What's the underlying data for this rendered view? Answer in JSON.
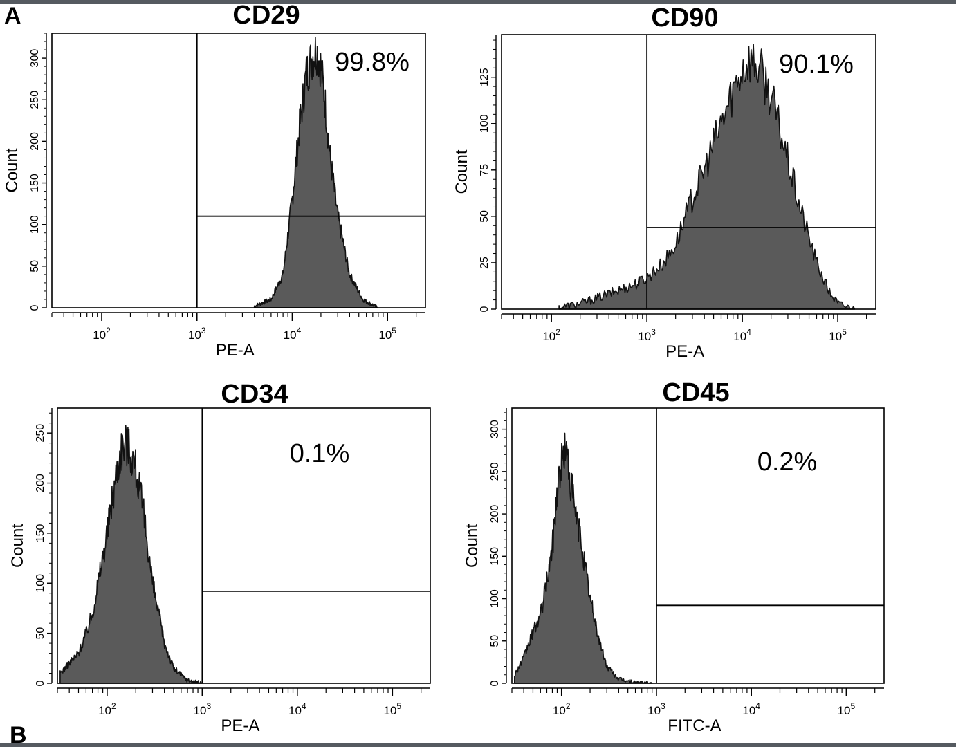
{
  "figure": {
    "panel_label_top": "A",
    "panel_label_bottom": "B"
  },
  "chart_data": [
    {
      "type": "area",
      "title": "CD29",
      "xlabel": "PE-A",
      "ylabel": "Count",
      "xscale": "log",
      "xlim": [
        30,
        250000
      ],
      "ylim": [
        0,
        330
      ],
      "yticks": [
        0,
        50,
        100,
        150,
        200,
        250,
        300
      ],
      "xtick_labels": [
        "10^2",
        "10^3",
        "10^4",
        "10^5"
      ],
      "xticks": [
        100,
        1000,
        10000,
        100000
      ],
      "gate": {
        "x_threshold": 1000,
        "y_level": 110
      },
      "gate_label": "99.8%",
      "fill_color": "#5a5a5a",
      "x": [
        4000,
        6000,
        8000,
        10000,
        12000,
        14000,
        16000,
        18000,
        20000,
        22000,
        25000,
        30000,
        40000,
        55000,
        80000
      ],
      "y": [
        2,
        10,
        40,
        130,
        220,
        280,
        300,
        310,
        290,
        250,
        180,
        110,
        40,
        10,
        0
      ]
    },
    {
      "type": "area",
      "title": "CD90",
      "xlabel": "PE-A",
      "ylabel": "Count",
      "xscale": "log",
      "xlim": [
        30,
        250000
      ],
      "ylim": [
        0,
        148
      ],
      "yticks": [
        0,
        25,
        50,
        75,
        100,
        125
      ],
      "xtick_labels": [
        "10^2",
        "10^3",
        "10^4",
        "10^5"
      ],
      "xticks": [
        100,
        1000,
        10000,
        100000
      ],
      "gate": {
        "x_threshold": 1000,
        "y_level": 44
      },
      "gate_label": "90.1%",
      "fill_color": "#5a5a5a",
      "x": [
        120,
        200,
        300,
        500,
        800,
        1000,
        1500,
        2000,
        3000,
        4000,
        6000,
        8000,
        10000,
        12000,
        15000,
        20000,
        30000,
        40000,
        60000,
        80000,
        100000,
        150000
      ],
      "y": [
        1,
        3,
        6,
        10,
        14,
        17,
        25,
        35,
        60,
        75,
        100,
        118,
        130,
        135,
        130,
        115,
        80,
        55,
        25,
        10,
        3,
        0
      ]
    },
    {
      "type": "area",
      "title": "CD34",
      "xlabel": "PE-A",
      "ylabel": "Count",
      "xscale": "log",
      "xlim": [
        30,
        250000
      ],
      "ylim": [
        0,
        275
      ],
      "yticks": [
        0,
        50,
        100,
        150,
        200,
        250
      ],
      "xtick_labels": [
        "10^2",
        "10^3",
        "10^4",
        "10^5"
      ],
      "xticks": [
        100,
        1000,
        10000,
        100000
      ],
      "gate": {
        "x_threshold": 1000,
        "y_level": 92
      },
      "gate_label": "0.1%",
      "fill_color": "#5a5a5a",
      "x": [
        32,
        40,
        50,
        60,
        70,
        80,
        100,
        120,
        140,
        160,
        180,
        200,
        250,
        300,
        400,
        500,
        700,
        1000
      ],
      "y": [
        10,
        20,
        30,
        50,
        70,
        100,
        150,
        200,
        235,
        240,
        230,
        215,
        160,
        100,
        40,
        15,
        3,
        0
      ]
    },
    {
      "type": "area",
      "title": "CD45",
      "xlabel": "FITC-A",
      "ylabel": "Count",
      "xscale": "log",
      "xlim": [
        30,
        250000
      ],
      "ylim": [
        0,
        325
      ],
      "yticks": [
        0,
        50,
        100,
        150,
        200,
        250,
        300
      ],
      "xtick_labels": [
        "10^2",
        "10^3",
        "10^4",
        "10^5"
      ],
      "xticks": [
        100,
        1000,
        10000,
        100000
      ],
      "gate": {
        "x_threshold": 1000,
        "y_level": 92
      },
      "gate_label": "0.2%",
      "fill_color": "#5a5a5a",
      "x": [
        32,
        40,
        50,
        60,
        70,
        80,
        90,
        100,
        110,
        120,
        140,
        160,
        200,
        250,
        300,
        400,
        600,
        900
      ],
      "y": [
        10,
        30,
        60,
        80,
        120,
        160,
        230,
        260,
        280,
        250,
        200,
        170,
        100,
        50,
        20,
        5,
        1,
        0
      ]
    }
  ]
}
